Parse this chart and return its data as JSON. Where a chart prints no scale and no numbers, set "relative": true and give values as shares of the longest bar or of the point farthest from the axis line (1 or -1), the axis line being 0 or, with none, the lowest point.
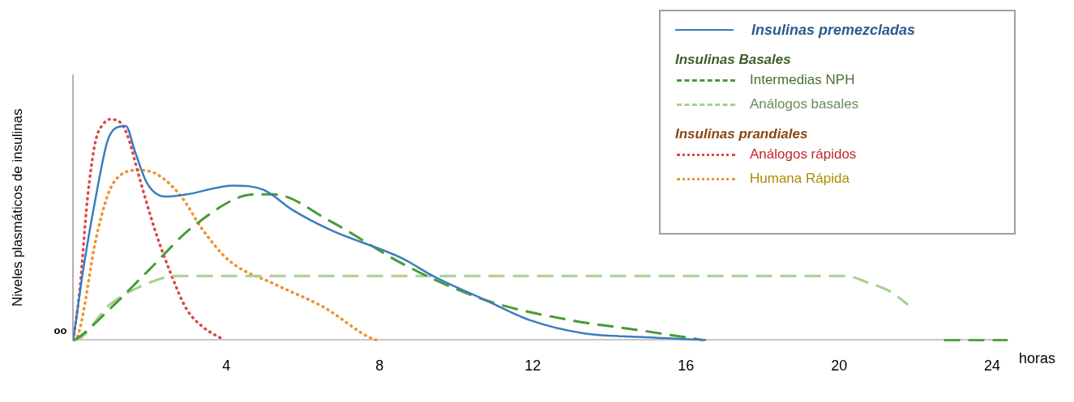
{
  "chart_data": {
    "type": "line",
    "relative": true,
    "ylabel": "Niveles plasmáticos de insulinas",
    "xlabel": "horas",
    "xlim": [
      0,
      24.4
    ],
    "xticks": [
      4,
      8,
      12,
      16,
      20,
      24
    ],
    "legend": "top right",
    "annotations": [
      {
        "text": "oo",
        "x": 0,
        "y": 0
      },
      "Insulinas Basales",
      "Insulinas prandiales"
    ],
    "series": [
      {
        "name": "Insulinas premezcladas",
        "color": "#3a7dbf",
        "line_style": "solid",
        "x": [
          0,
          0.27,
          0.58,
          0.89,
          1.1,
          1.37,
          1.62,
          1.93,
          2.4,
          2.96,
          4.17,
          4.98,
          5.72,
          6.7,
          8.59,
          9.4,
          10.78,
          11.93,
          13.35,
          14.77,
          16.53
        ],
        "values": [
          0,
          0.33,
          0.64,
          0.9,
          0.96,
          0.97,
          0.85,
          0.71,
          0.65,
          0.66,
          0.7,
          0.68,
          0.59,
          0.5,
          0.37,
          0.29,
          0.18,
          0.09,
          0.03,
          0.014,
          0
        ]
      },
      {
        "name": "Intermedias NPH",
        "color": "#4a9a3a",
        "line_style": "dashed",
        "x": [
          0,
          0.06,
          0.95,
          1.99,
          3.17,
          4.74,
          5.23,
          6.7,
          8.66,
          10.78,
          12.99,
          14.77,
          16.46
        ],
        "values": [
          0,
          0.003,
          0.14,
          0.32,
          0.52,
          0.66,
          0.66,
          0.54,
          0.34,
          0.18,
          0.09,
          0.045,
          0
        ]
      },
      {
        "name": "Análogos basales",
        "color": "#a8d08d",
        "line_style": "dashed",
        "x": [
          0,
          0.12,
          0.95,
          1.99,
          2.69,
          20.18,
          20.76,
          21.33,
          21.8
        ],
        "values": [
          0,
          0.003,
          0.16,
          0.26,
          0.29,
          0.29,
          0.26,
          0.22,
          0.16
        ]
      },
      {
        "name": "Análogos rápidos",
        "color": "#d94a4a",
        "line_style": "dotted",
        "x": [
          0,
          0.17,
          0.37,
          0.58,
          0.79,
          0.95,
          1.2,
          1.41,
          1.72,
          2.13,
          2.55,
          2.96,
          3.38,
          3.94
        ],
        "values": [
          0,
          0.23,
          0.64,
          0.9,
          0.98,
          1,
          0.99,
          0.93,
          0.74,
          0.5,
          0.3,
          0.14,
          0.06,
          0
        ]
      },
      {
        "name": "Humana Rápida",
        "color": "#f0922e",
        "line_style": "dotted",
        "x": [
          0,
          0.12,
          0.62,
          1.04,
          1.72,
          2.2,
          2.82,
          3.38,
          4.07,
          5.3,
          6.53,
          7.85,
          7.95
        ],
        "values": [
          0,
          0.02,
          0.48,
          0.71,
          0.77,
          0.75,
          0.65,
          0.5,
          0.36,
          0.25,
          0.15,
          0.003,
          0
        ]
      },
      {
        "color": "#5aa33a",
        "line_style": "dashed",
        "x": [
          22.74,
          24.4
        ],
        "values": [
          0,
          0
        ]
      }
    ]
  }
}
